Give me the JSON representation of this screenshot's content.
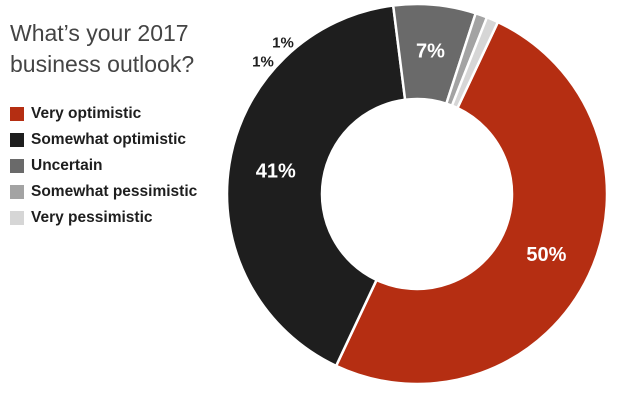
{
  "chart_data": {
    "type": "pie",
    "title": "What’s your 2017 business outlook?",
    "title_lines": [
      "What’s your 2017",
      "business outlook?"
    ],
    "categories": [
      "Very optimistic",
      "Somewhat optimistic",
      "Uncertain",
      "Somewhat pessimistic",
      "Very pessimistic"
    ],
    "values": [
      50,
      41,
      7,
      1,
      1
    ],
    "labels": [
      "50%",
      "41%",
      "7%",
      "1%",
      "1%"
    ],
    "colors": [
      "#b52e12",
      "#1e1e1e",
      "#6a6a6a",
      "#a3a3a3",
      "#d6d6d6"
    ],
    "label_colors": [
      "#ffffff",
      "#ffffff",
      "#ffffff",
      "#1e1e1e",
      "#1e1e1e"
    ],
    "donut": true,
    "legend_position": "left"
  }
}
